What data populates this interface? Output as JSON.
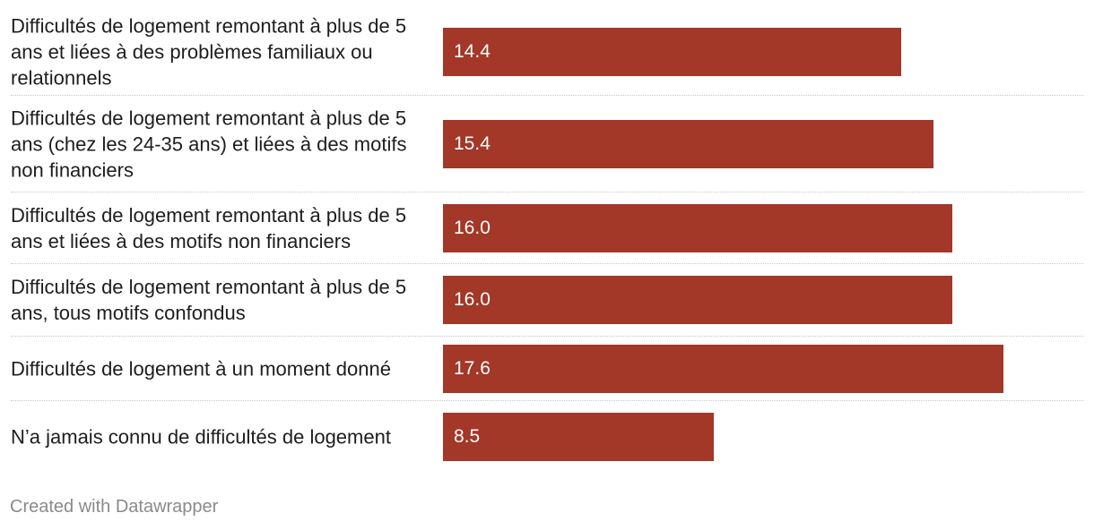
{
  "chart_data": {
    "type": "bar",
    "orientation": "horizontal",
    "categories": [
      "Difficultés de logement remontant à plus de 5 ans et liées à des problèmes familiaux ou relationnels",
      "Difficultés de logement remontant à plus de 5 ans (chez les 24-35 ans) et liées à des motifs non financiers",
      "Difficultés de logement remontant à plus de 5 ans et liées à des motifs non financiers",
      "Difficultés de logement remontant à plus de 5 ans, tous motifs confondus",
      "Difficultés de logement à un moment donné",
      "N’a jamais connu de difficultés de logement"
    ],
    "values": [
      14.4,
      15.4,
      16.0,
      16.0,
      17.6,
      8.5
    ],
    "value_labels": [
      "14.4",
      "15.4",
      "16.0",
      "16.0",
      "17.6",
      "8.5"
    ],
    "xlim": [
      0,
      20
    ],
    "grid": false,
    "legend": "none",
    "bar_color": "#a33728"
  },
  "footer": {
    "credit": "Created with Datawrapper"
  }
}
